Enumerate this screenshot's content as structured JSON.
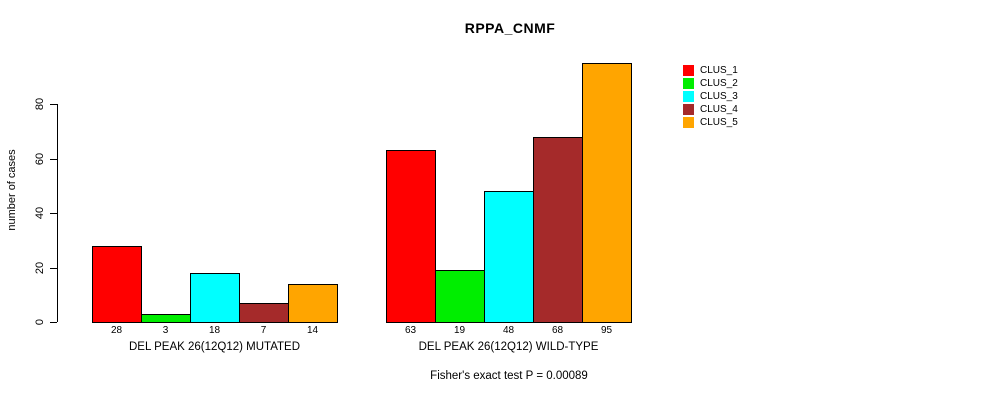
{
  "title": "RPPA_CNMF",
  "footer": "Fisher's exact test P = 0.00089",
  "chart_data": {
    "type": "bar",
    "title": "RPPA_CNMF",
    "xlabel": "",
    "ylabel": "number of cases",
    "ylim": [
      0,
      95
    ],
    "yticks": [
      0,
      20,
      40,
      60,
      80
    ],
    "grid": false,
    "legend_position": "right",
    "categories": [
      "DEL PEAK 26(12Q12) MUTATED",
      "DEL PEAK 26(12Q12) WILD-TYPE"
    ],
    "series": [
      {
        "name": "CLUS_1",
        "color": "#FF0000",
        "values": [
          28,
          63
        ]
      },
      {
        "name": "CLUS_2",
        "color": "#00EE00",
        "values": [
          3,
          19
        ]
      },
      {
        "name": "CLUS_3",
        "color": "#00FFFF",
        "values": [
          18,
          48
        ]
      },
      {
        "name": "CLUS_4",
        "color": "#A52A2A",
        "values": [
          7,
          68
        ]
      },
      {
        "name": "CLUS_5",
        "color": "#FFA500",
        "values": [
          14,
          95
        ]
      }
    ],
    "bar_labels": {
      "DEL PEAK 26(12Q12) MUTATED": [
        28,
        3,
        18,
        7,
        14
      ],
      "DEL PEAK 26(12Q12) WILD-TYPE": [
        63,
        19,
        48,
        68,
        95
      ]
    },
    "annotation": "Fisher's exact test P = 0.00089"
  }
}
